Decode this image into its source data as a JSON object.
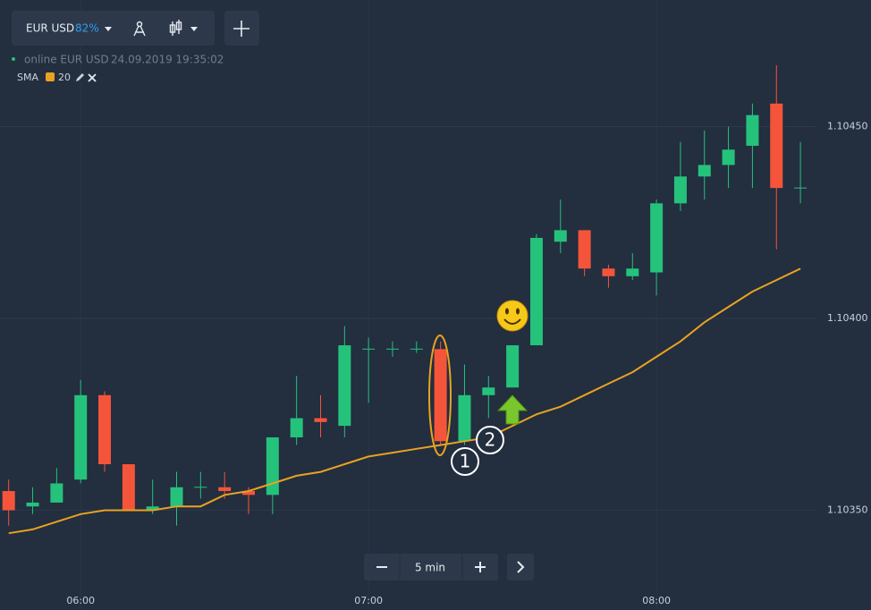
{
  "toolbar": {
    "pair": "EUR USD",
    "payout": "82%"
  },
  "status": {
    "state": "online EUR USD",
    "time": "24.09.2019 19:35:02"
  },
  "timeframe": "5 min",
  "chart_data": {
    "type": "candlestick",
    "categories": [
      null,
      null,
      null,
      "06:00",
      null,
      null,
      null,
      null,
      null,
      null,
      null,
      null,
      null,
      null,
      null,
      "07:00",
      null,
      null,
      null,
      null,
      null,
      null,
      null,
      null,
      null,
      null,
      null,
      "08:00",
      null,
      null,
      null,
      null,
      null,
      null
    ],
    "open": [
      1.10355,
      1.10351,
      1.10352,
      1.10358,
      1.1038,
      1.10362,
      1.1035,
      1.10351,
      1.10356,
      1.10356,
      1.10355,
      1.10354,
      1.10369,
      1.10374,
      1.10372,
      1.10392,
      1.10392,
      1.10392,
      1.10392,
      1.10368,
      1.1038,
      1.10382,
      1.10393,
      1.1042,
      1.10423,
      1.10413,
      1.10411,
      1.10412,
      1.1043,
      1.10437,
      1.1044,
      1.10445,
      1.10456,
      1.10434
    ],
    "high": [
      1.10358,
      1.10356,
      1.10361,
      1.10384,
      1.10381,
      1.10362,
      1.10358,
      1.1036,
      1.1036,
      1.1036,
      1.10356,
      1.10369,
      1.10385,
      1.1038,
      1.10398,
      1.10395,
      1.10394,
      1.10394,
      1.10394,
      1.10388,
      1.10385,
      1.10393,
      1.10422,
      1.10431,
      1.10423,
      1.10414,
      1.10417,
      1.10431,
      1.10446,
      1.10449,
      1.1045,
      1.10456,
      1.10466,
      1.10446
    ],
    "low": [
      1.10346,
      1.10349,
      1.10352,
      1.10357,
      1.1036,
      1.1035,
      1.10349,
      1.10346,
      1.10353,
      1.10353,
      1.10349,
      1.10349,
      1.10367,
      1.10369,
      1.10369,
      1.10378,
      1.1039,
      1.10391,
      1.10367,
      1.10367,
      1.10374,
      1.10382,
      1.10393,
      1.10417,
      1.10411,
      1.10408,
      1.1041,
      1.10406,
      1.10428,
      1.10431,
      1.10434,
      1.10434,
      1.10418,
      1.1043
    ],
    "close": [
      1.1035,
      1.10352,
      1.10357,
      1.1038,
      1.10362,
      1.1035,
      1.10351,
      1.10356,
      1.10356,
      1.10355,
      1.10354,
      1.10369,
      1.10374,
      1.10373,
      1.10393,
      1.10392,
      1.10392,
      1.10392,
      1.10368,
      1.1038,
      1.10382,
      1.10393,
      1.10421,
      1.10423,
      1.10413,
      1.10411,
      1.10413,
      1.1043,
      1.10437,
      1.1044,
      1.10444,
      1.10453,
      1.10434,
      1.10434
    ],
    "up_color": "#25c27c",
    "down_color": "#f4553a",
    "indicator": {
      "name": "SMA",
      "period": 20,
      "color": "#e8a321",
      "values": [
        1.10344,
        1.10345,
        1.10347,
        1.10349,
        1.1035,
        1.1035,
        1.1035,
        1.10351,
        1.10351,
        1.10354,
        1.10355,
        1.10357,
        1.10359,
        1.1036,
        1.10362,
        1.10364,
        1.10365,
        1.10366,
        1.10367,
        1.10368,
        1.10369,
        1.10372,
        1.10375,
        1.10377,
        1.1038,
        1.10383,
        1.10386,
        1.1039,
        1.10394,
        1.10399,
        1.10403,
        1.10407,
        1.1041,
        1.10413
      ]
    },
    "ylim": [
      1.10324,
      1.10483
    ],
    "yticks": [
      {
        "value": 1.1035,
        "label": "1.10350"
      },
      {
        "value": 1.104,
        "label": "1.10400"
      },
      {
        "value": 1.1045,
        "label": "1.10450"
      }
    ],
    "grid": true,
    "annotations": [
      "1",
      "2"
    ]
  }
}
